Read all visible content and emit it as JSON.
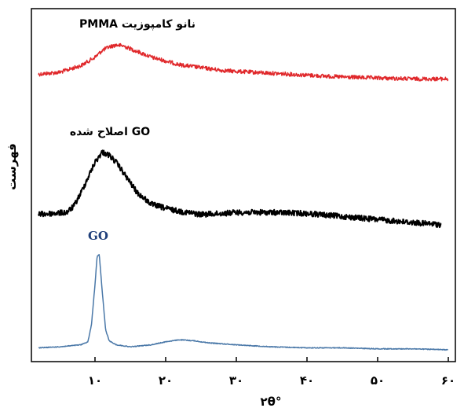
{
  "chart_data": {
    "type": "line",
    "title": "",
    "xlabel": "۲θ°",
    "ylabel": "فهرست",
    "xlim": [
      1,
      61
    ],
    "x_ticks": [
      10,
      20,
      30,
      40,
      50,
      60
    ],
    "x_tick_labels": [
      "۱۰",
      "۲۰",
      "۳۰",
      "۴۰",
      "۵۰",
      "۶۰"
    ],
    "grid": false,
    "legend": "none",
    "series": [
      {
        "name": "نانو کامپوزیت PMMA",
        "color": "#e0282b",
        "line_width": 1.5,
        "noise": 2.5,
        "x": [
          2,
          5,
          8,
          10,
          11,
          12,
          13,
          14,
          15,
          16,
          18,
          20,
          22,
          25,
          28,
          30,
          35,
          40,
          45,
          50,
          55,
          60
        ],
        "y": [
          0.08,
          0.1,
          0.17,
          0.26,
          0.33,
          0.37,
          0.39,
          0.38,
          0.35,
          0.32,
          0.26,
          0.22,
          0.18,
          0.15,
          0.12,
          0.11,
          0.09,
          0.07,
          0.05,
          0.04,
          0.03,
          0.03
        ]
      },
      {
        "name": "GO اصلاح شده",
        "color": "#000000",
        "line_width": 2.0,
        "noise": 3.5,
        "x": [
          2,
          4,
          6,
          7,
          8,
          9,
          10,
          11,
          12,
          13,
          14,
          15,
          16,
          18,
          20,
          22,
          25,
          28,
          30,
          35,
          40,
          45,
          50,
          55,
          59
        ],
        "y": [
          0.04,
          0.05,
          0.06,
          0.12,
          0.25,
          0.4,
          0.55,
          0.65,
          0.62,
          0.55,
          0.45,
          0.35,
          0.25,
          0.14,
          0.1,
          0.07,
          0.04,
          0.05,
          0.06,
          0.06,
          0.05,
          0.02,
          -0.01,
          -0.04,
          -0.06
        ]
      },
      {
        "name": "GO",
        "color": "#4a78a8",
        "line_width": 1.5,
        "noise": 0.5,
        "x": [
          2,
          5,
          8,
          9,
          9.5,
          10,
          10.3,
          10.6,
          11,
          11.5,
          12,
          13,
          15,
          18,
          20,
          22,
          24,
          26,
          28,
          30,
          35,
          40,
          45,
          50,
          55,
          60
        ],
        "y": [
          0.02,
          0.03,
          0.05,
          0.08,
          0.25,
          0.65,
          0.93,
          0.95,
          0.6,
          0.2,
          0.09,
          0.05,
          0.03,
          0.05,
          0.08,
          0.1,
          0.09,
          0.07,
          0.06,
          0.05,
          0.03,
          0.02,
          0.02,
          0.01,
          0.01,
          0.0
        ]
      }
    ]
  }
}
